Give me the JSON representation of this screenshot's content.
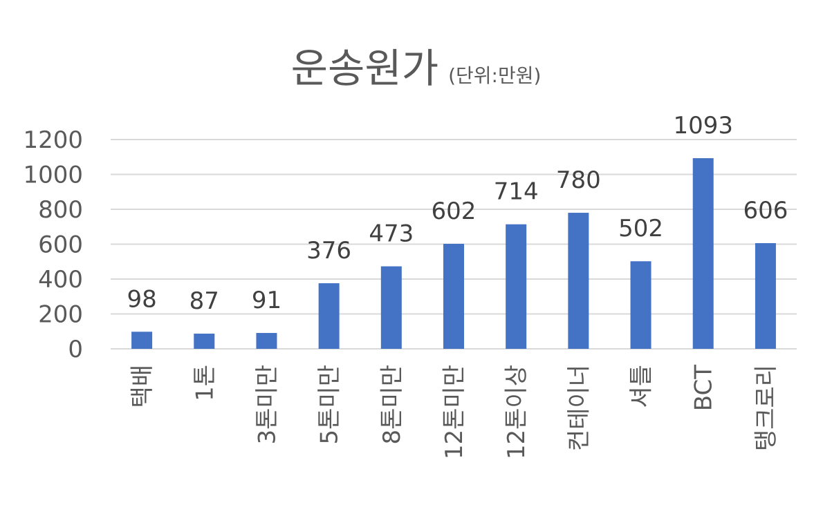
{
  "chart_data": {
    "type": "bar",
    "title": "운송원가",
    "subtitle": "(단위:만원)",
    "categories": [
      "택배",
      "1톤",
      "3톤미만",
      "5톤미만",
      "8톤미만",
      "12톤미만",
      "12톤이상",
      "컨테이너",
      "셔틀",
      "BCT",
      "탱크로리"
    ],
    "values": [
      98,
      87,
      91,
      376,
      473,
      602,
      714,
      780,
      502,
      1093,
      606
    ],
    "yticks": [
      "0",
      "200",
      "400",
      "600",
      "800",
      "1000",
      "1200"
    ],
    "ylim": [
      0,
      1200
    ],
    "grid": true,
    "legend": "none",
    "bar_color": "#4472C4",
    "text_color": "#595959",
    "grid_color": "#D9D9D9"
  }
}
